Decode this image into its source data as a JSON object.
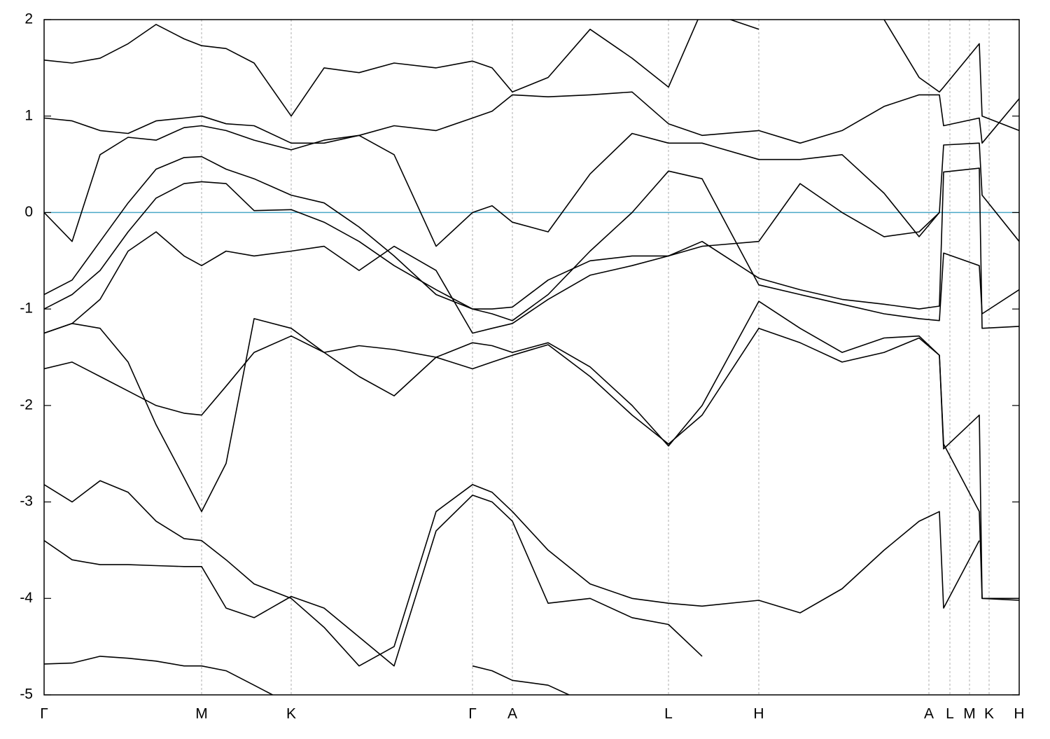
{
  "chart_data": {
    "type": "line",
    "xlim": [
      0,
      1393
    ],
    "ylim": [
      -5,
      2
    ],
    "yticks": [
      -5,
      -4,
      -3,
      -2,
      -1,
      0,
      1,
      2
    ],
    "xticks": [
      {
        "value": 0,
        "label": "Γ"
      },
      {
        "value": 225,
        "label": "M"
      },
      {
        "value": 353,
        "label": "K"
      },
      {
        "value": 612,
        "label": "Γ"
      },
      {
        "value": 669,
        "label": "A"
      },
      {
        "value": 892,
        "label": "L"
      },
      {
        "value": 1021,
        "label": "H"
      },
      {
        "value": 1264,
        "label": "A"
      },
      {
        "value": 1294,
        "label": "L"
      },
      {
        "value": 1322,
        "label": "M"
      },
      {
        "value": 1350,
        "label": "K"
      },
      {
        "value": 1393,
        "label": "H"
      }
    ],
    "grid": true,
    "color": "#000000",
    "hline": {
      "value": 0,
      "color": "#4aa8c8"
    },
    "x": [
      0,
      40,
      80,
      120,
      160,
      200,
      225,
      260,
      300,
      353,
      400,
      450,
      500,
      560,
      612,
      640,
      669,
      720,
      780,
      840,
      892,
      940,
      1021,
      1080,
      1140,
      1200,
      1250,
      1279,
      1285,
      1336,
      1340,
      1393
    ],
    "series": [
      {
        "values": [
          -1.62,
          -1.55,
          -1.7,
          -1.85,
          -2.0,
          -2.08,
          -2.1,
          -1.8,
          -1.45,
          -1.28,
          -1.45,
          -1.38,
          -1.42,
          -1.5,
          -1.62,
          -1.55,
          -1.48,
          -1.37,
          -1.7,
          -2.1,
          -2.4,
          -2.1,
          -1.2,
          -1.35,
          -1.55,
          -1.45,
          -1.3,
          -1.48,
          -2.45,
          -2.1,
          -4.0,
          -4.02
        ]
      },
      {
        "values": [
          -1.25,
          -1.15,
          -1.2,
          -1.55,
          -2.2,
          -2.75,
          -3.1,
          -2.6,
          -1.1,
          -1.2,
          -1.45,
          -1.7,
          -1.9,
          -1.5,
          -1.35,
          -1.38,
          -1.45,
          -1.35,
          -1.6,
          -2.0,
          -2.42,
          -2.0,
          -0.92,
          -1.2,
          -1.45,
          -1.3,
          -1.28,
          -1.48,
          -2.4,
          -3.1,
          -4.0,
          -4.0
        ]
      },
      {
        "values": [
          -2.82,
          -3.0,
          -2.78,
          -2.9,
          -3.2,
          -3.38,
          -3.4,
          -3.6,
          -3.85,
          -4.0,
          -4.3,
          -4.7,
          -4.5,
          -3.1,
          -2.82,
          -2.9,
          -3.1,
          -3.5,
          -3.85,
          -4.0,
          -4.05,
          -4.08,
          -4.02,
          -4.15,
          -3.9,
          -3.5,
          -3.2,
          -3.1,
          -4.1,
          -3.4,
          null,
          null
        ]
      },
      {
        "values": [
          -3.4,
          -3.6,
          -3.65,
          -3.65,
          -3.66,
          -3.67,
          -3.67,
          -4.1,
          -4.2,
          -3.98,
          -4.1,
          -4.4,
          -4.7,
          -3.3,
          -2.93,
          -3.0,
          -3.2,
          -4.05,
          -4.0,
          -4.2,
          -4.27,
          -4.6,
          null,
          null,
          null,
          null,
          null,
          null,
          null,
          null,
          null,
          null
        ]
      },
      {
        "values": [
          -0.85,
          -0.7,
          -0.3,
          0.1,
          0.45,
          0.57,
          0.58,
          0.45,
          0.35,
          0.18,
          0.1,
          -0.15,
          -0.45,
          -0.85,
          -1.0,
          -1.05,
          -1.12,
          -0.85,
          -0.4,
          0.0,
          0.43,
          0.35,
          -0.75,
          -0.85,
          -0.95,
          -1.05,
          -1.1,
          -1.12,
          -0.42,
          -0.55,
          -1.05,
          -0.8
        ]
      },
      {
        "values": [
          -1.0,
          -0.85,
          -0.6,
          -0.2,
          0.15,
          0.3,
          0.32,
          0.3,
          0.02,
          0.03,
          -0.1,
          -0.3,
          -0.55,
          -0.8,
          -1.0,
          -1.0,
          -0.98,
          -0.7,
          -0.5,
          -0.45,
          -0.45,
          -0.3,
          -0.68,
          -0.8,
          -0.9,
          -0.95,
          -1.0,
          -0.97,
          0.42,
          0.46,
          -1.2,
          -1.18
        ]
      },
      {
        "values": [
          0.0,
          -0.3,
          0.6,
          0.78,
          0.75,
          0.88,
          0.9,
          0.85,
          0.75,
          0.65,
          0.75,
          0.8,
          0.6,
          -0.35,
          0.0,
          0.07,
          -0.1,
          -0.2,
          0.4,
          0.82,
          0.72,
          0.72,
          0.55,
          0.55,
          0.6,
          0.2,
          -0.25,
          0.0,
          0.7,
          0.72,
          0.18,
          -0.3
        ]
      },
      {
        "values": [
          0.98,
          0.95,
          0.85,
          0.82,
          0.95,
          0.98,
          1.0,
          0.92,
          0.9,
          0.72,
          0.72,
          0.8,
          0.9,
          0.85,
          0.98,
          1.05,
          1.22,
          1.2,
          1.22,
          1.25,
          0.92,
          0.8,
          0.85,
          0.72,
          0.85,
          1.1,
          1.22,
          1.22,
          0.9,
          0.98,
          0.72,
          1.18
        ]
      },
      {
        "values": [
          1.58,
          1.55,
          1.6,
          1.75,
          1.95,
          1.8,
          1.73,
          1.7,
          1.55,
          1.0,
          1.5,
          1.45,
          1.55,
          1.5,
          1.57,
          1.5,
          1.25,
          1.4,
          1.9,
          1.6,
          1.3,
          2.1,
          1.9,
          null,
          null,
          2.0,
          1.4,
          1.25,
          1.3,
          1.75,
          1.0,
          0.85
        ]
      },
      {
        "values": [
          -1.25,
          -1.15,
          -0.9,
          -0.4,
          -0.2,
          -0.45,
          -0.55,
          -0.4,
          -0.45,
          -0.4,
          -0.35,
          -0.6,
          -0.35,
          -0.6,
          -1.25,
          -1.2,
          -1.15,
          -0.9,
          -0.65,
          -0.55,
          -0.45,
          -0.35,
          -0.3,
          0.3,
          0.0,
          -0.25,
          -0.2,
          0.0,
          null,
          null,
          null,
          null
        ]
      },
      {
        "values": [
          -4.68,
          -4.67,
          -4.6,
          -4.62,
          -4.65,
          -4.7,
          -4.7,
          -4.75,
          -4.9,
          -5.1,
          null,
          null,
          null,
          null,
          -4.7,
          -4.75,
          -4.85,
          -4.9,
          -5.1,
          null,
          null,
          null,
          null,
          null,
          null,
          null,
          null,
          null,
          null,
          null,
          null,
          null
        ]
      }
    ]
  }
}
